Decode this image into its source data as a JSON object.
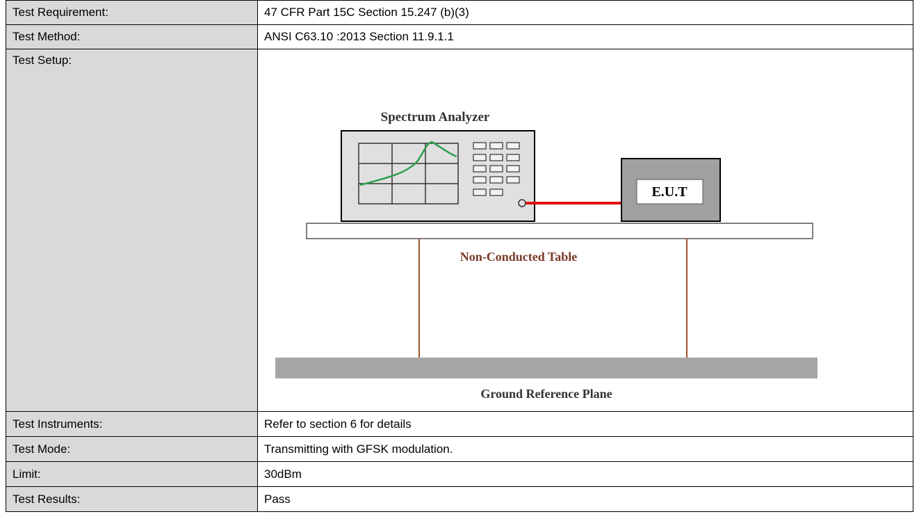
{
  "table": {
    "rows": [
      {
        "label": "Test Requirement:",
        "value": "47 CFR Part 15C Section 15.247 (b)(3)"
      },
      {
        "label": "Test Method:",
        "value": "ANSI C63.10 :2013 Section 11.9.1.1"
      },
      {
        "label": "Test Setup:",
        "diagram": {
          "title": "Spectrum Analyzer",
          "eut": "E.U.T",
          "table": "Non-Conducted Table",
          "ground": "Ground Reference Plane"
        }
      },
      {
        "label": "Test Instruments:",
        "value": "Refer to section 6 for details"
      },
      {
        "label": "Test Mode:",
        "value": "Transmitting with GFSK modulation."
      },
      {
        "label": "Limit:",
        "value": "30dBm"
      },
      {
        "label": "Test Results:",
        "value": "Pass"
      }
    ]
  }
}
